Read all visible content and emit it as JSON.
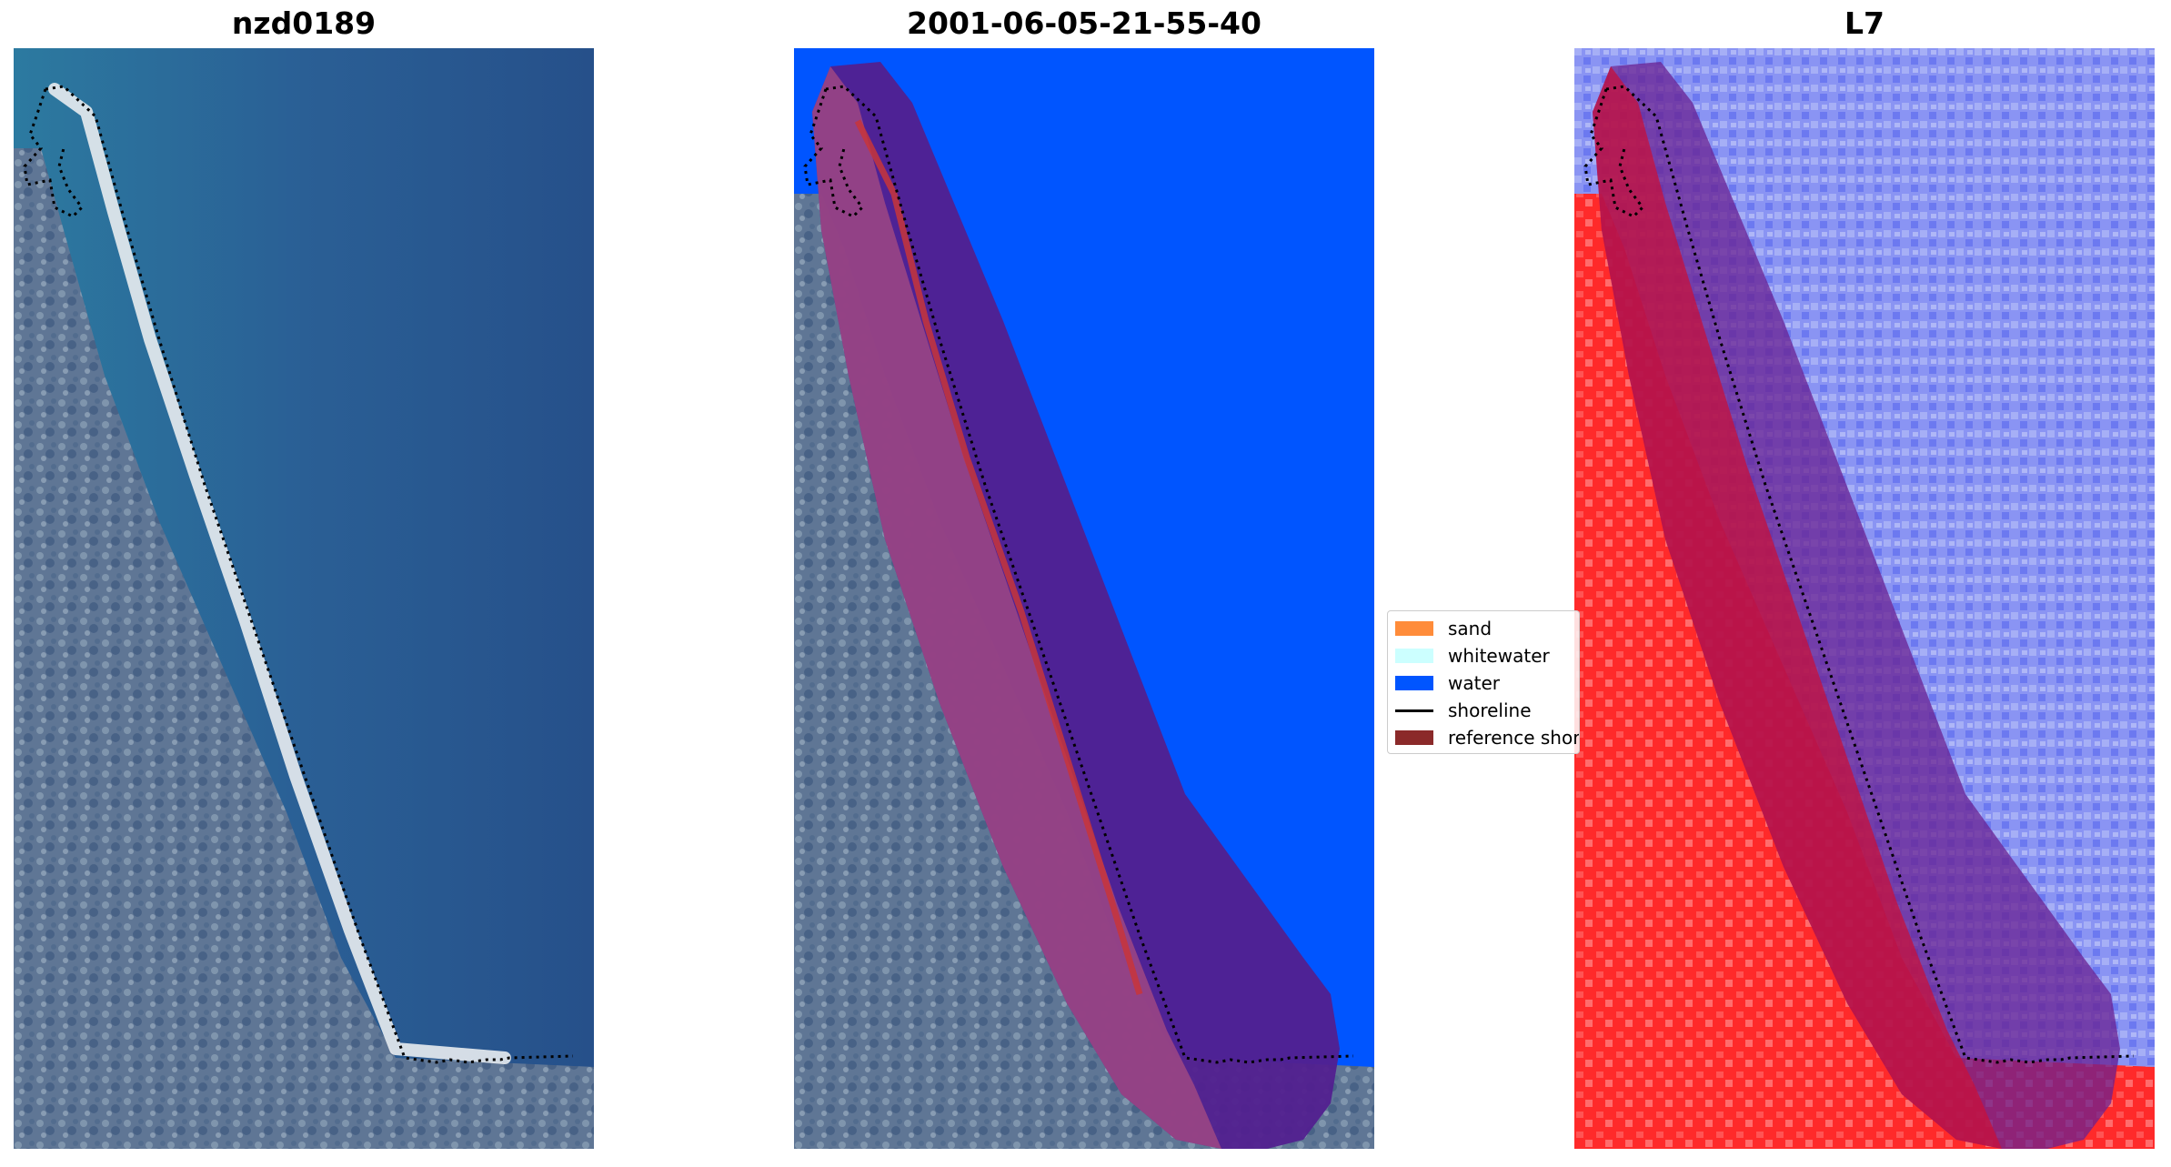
{
  "panels": [
    {
      "title": "nzd0189"
    },
    {
      "title": "2001-06-05-21-55-40"
    },
    {
      "title": "L7"
    }
  ],
  "legend": {
    "items": [
      {
        "label": "sand",
        "color": "#ff8c3a"
      },
      {
        "label": "whitewater",
        "color": "#ccffff"
      },
      {
        "label": "water",
        "color": "#0055ff"
      },
      {
        "label": "shoreline",
        "color": "#000000"
      },
      {
        "label": "reference shoreline buffer",
        "color": "#8b2a2a"
      }
    ]
  },
  "colors": {
    "land": "#6d7f9a",
    "ocean": "#2a6a9a",
    "water_class": "#0055ff",
    "buffer": "#52208f",
    "index_land": "#ff2020",
    "index_water": "#7a86f5"
  }
}
